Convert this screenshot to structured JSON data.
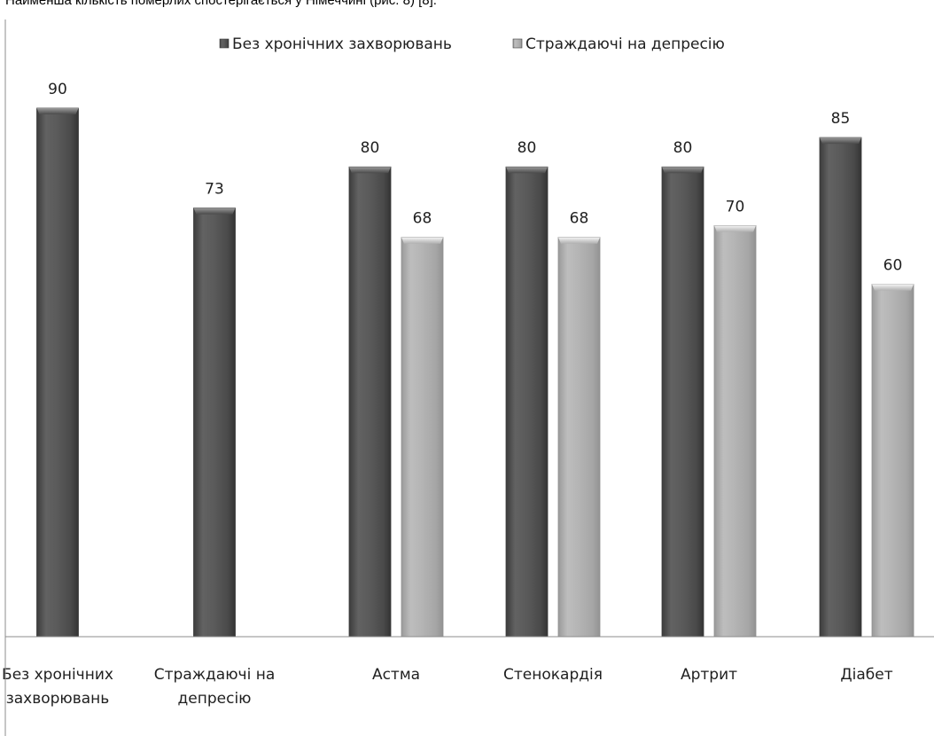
{
  "page": {
    "caption": "Найменша кількість померлих спостерігається у Німеччині (рис. 8) [8]."
  },
  "chart_data": {
    "type": "bar",
    "title": "",
    "xlabel": "",
    "ylabel": "",
    "ylim": [
      0,
      100
    ],
    "grid": false,
    "legend_position": "top",
    "categories": [
      [
        "Без хронічних",
        "захворювань"
      ],
      [
        "Страждаючі  на",
        "депресію"
      ],
      [
        "Астма"
      ],
      [
        "Стенокардія"
      ],
      [
        "Артрит"
      ],
      [
        "Діабет"
      ]
    ],
    "series": [
      {
        "name": "Без хронічних захворювань",
        "color": "#5a5a5a",
        "values": [
          90,
          73,
          80,
          80,
          80,
          85
        ]
      },
      {
        "name": "Страждаючі на депресію",
        "color": "#b4b4b4",
        "values": [
          null,
          null,
          68,
          68,
          70,
          60
        ]
      }
    ]
  }
}
